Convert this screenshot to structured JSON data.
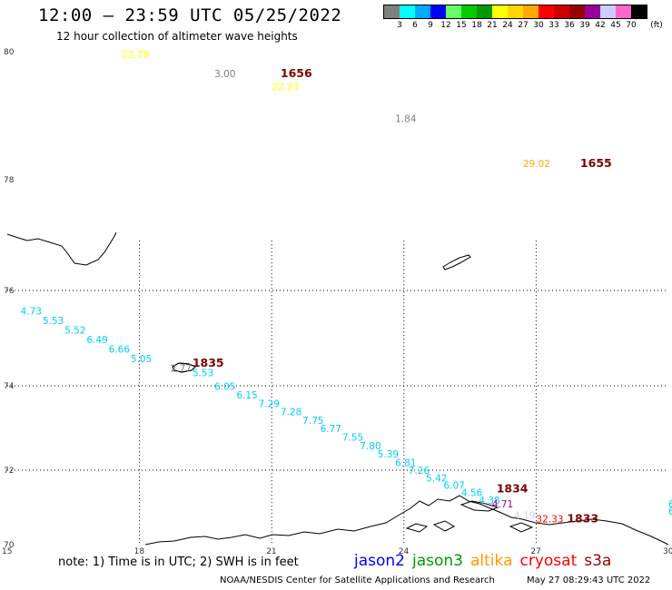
{
  "header": {
    "title": "12:00 – 23:59 UTC 05/25/2022",
    "subtitle": "12 hour collection of altimeter wave heights"
  },
  "colorbar": {
    "colors": [
      "#808080",
      "#00ffff",
      "#00aaff",
      "#0000ff",
      "#66ff66",
      "#00cc00",
      "#009900",
      "#ffff00",
      "#ffd700",
      "#ffaa00",
      "#ff0000",
      "#cc0000",
      "#990000",
      "#990099",
      "#ccccff",
      "#ff66cc",
      "#000000"
    ],
    "labels": [
      "3",
      "6",
      "9",
      "12",
      "15",
      "18",
      "21",
      "24",
      "27",
      "30",
      "33",
      "36",
      "39",
      "42",
      "45",
      "70"
    ],
    "unit": "(ft)"
  },
  "map": {
    "lon_ticks": [
      "15",
      "18",
      "21",
      "24",
      "27",
      "30"
    ],
    "lat_ticks": [
      "70",
      "72",
      "74",
      "76",
      "78",
      "80"
    ],
    "lat_is_mercator": true,
    "land_color": "#000000",
    "grid_color": "#000000"
  },
  "observations": [
    {
      "lon": 17.6,
      "lat": 79.9,
      "value": "22.79",
      "color": "#ffff00"
    },
    {
      "lon": 19.7,
      "lat": 79.6,
      "value": "3.00",
      "color": "#808080"
    },
    {
      "lon": 21.0,
      "lat": 79.4,
      "value": "22.23",
      "color": "#ffff00"
    },
    {
      "lon": 23.8,
      "lat": 78.9,
      "value": "1.84",
      "color": "#808080"
    },
    {
      "lon": 26.7,
      "lat": 78.2,
      "value": "29.02",
      "color": "#ffaa00"
    },
    {
      "lon": 15.3,
      "lat": 75.5,
      "value": "4.73",
      "color": "#00ccff"
    },
    {
      "lon": 15.8,
      "lat": 75.3,
      "value": "5.53",
      "color": "#00ccff"
    },
    {
      "lon": 16.3,
      "lat": 75.1,
      "value": "5.52",
      "color": "#00ccff"
    },
    {
      "lon": 16.8,
      "lat": 74.9,
      "value": "6.49",
      "color": "#00ccff"
    },
    {
      "lon": 17.3,
      "lat": 74.7,
      "value": "6.66",
      "color": "#00ccff"
    },
    {
      "lon": 17.8,
      "lat": 74.5,
      "value": "5.05",
      "color": "#00ccff"
    },
    {
      "lon": 18.7,
      "lat": 74.3,
      "value": "2.77",
      "color": "#808080"
    },
    {
      "lon": 19.2,
      "lat": 74.2,
      "value": "5.53",
      "color": "#00ccff"
    },
    {
      "lon": 19.7,
      "lat": 73.9,
      "value": "6.05",
      "color": "#00ccff"
    },
    {
      "lon": 20.2,
      "lat": 73.7,
      "value": "6.15",
      "color": "#00ccff"
    },
    {
      "lon": 20.7,
      "lat": 73.5,
      "value": "7.29",
      "color": "#00ccff"
    },
    {
      "lon": 21.2,
      "lat": 73.3,
      "value": "7.28",
      "color": "#00ccff"
    },
    {
      "lon": 21.7,
      "lat": 73.1,
      "value": "7.75",
      "color": "#00ccff"
    },
    {
      "lon": 22.1,
      "lat": 72.9,
      "value": "6.77",
      "color": "#00ccff"
    },
    {
      "lon": 22.6,
      "lat": 72.7,
      "value": "7.55",
      "color": "#00ccff"
    },
    {
      "lon": 23.0,
      "lat": 72.5,
      "value": "7.80",
      "color": "#00ccff"
    },
    {
      "lon": 23.4,
      "lat": 72.3,
      "value": "5.39",
      "color": "#00ccff"
    },
    {
      "lon": 23.8,
      "lat": 72.1,
      "value": "6.81",
      "color": "#00ccff"
    },
    {
      "lon": 24.1,
      "lat": 71.9,
      "value": "7.26",
      "color": "#00ccff"
    },
    {
      "lon": 24.5,
      "lat": 71.7,
      "value": "5.42",
      "color": "#00ccff"
    },
    {
      "lon": 24.9,
      "lat": 71.5,
      "value": "6.07",
      "color": "#00ccff"
    },
    {
      "lon": 25.3,
      "lat": 71.3,
      "value": "4.56",
      "color": "#00ccff"
    },
    {
      "lon": 25.7,
      "lat": 71.1,
      "value": "4.38",
      "color": "#00ccff"
    },
    {
      "lon": 26.0,
      "lat": 71.0,
      "value": "4.71",
      "color": "#990099"
    },
    {
      "lon": 26.5,
      "lat": 70.7,
      "value": "4.19",
      "color": "#ccccff"
    },
    {
      "lon": 27.0,
      "lat": 70.6,
      "value": "32.33",
      "color": "#ff0000"
    },
    {
      "lon": 30.0,
      "lat": 71.0,
      "value": "6",
      "color": "#00ccff"
    },
    {
      "lon": 30.0,
      "lat": 70.8,
      "value": "6",
      "color": "#00ccff"
    }
  ],
  "pass_times": [
    {
      "lon": 21.2,
      "lat": 79.6,
      "label": "1656"
    },
    {
      "lon": 28.0,
      "lat": 78.2,
      "label": "1655"
    },
    {
      "lon": 19.2,
      "lat": 74.4,
      "label": "1835"
    },
    {
      "lon": 26.1,
      "lat": 71.4,
      "label": "1834"
    },
    {
      "lon": 27.7,
      "lat": 70.6,
      "label": "1833"
    }
  ],
  "note": "note:  1) Time is in UTC;  2) SWH is in feet",
  "legend": [
    {
      "label": "jason2",
      "color": "#0000ff"
    },
    {
      "label": "jason3",
      "color": "#009900"
    },
    {
      "label": "altika",
      "color": "#ff9900"
    },
    {
      "label": "cryosat",
      "color": "#ff0000"
    },
    {
      "label": "s3a",
      "color": "#990000"
    }
  ],
  "footer": "NOAA/NESDIS Center for Satellite Applications and Research",
  "timestamp": "May 27 08:29:43 UTC 2022"
}
